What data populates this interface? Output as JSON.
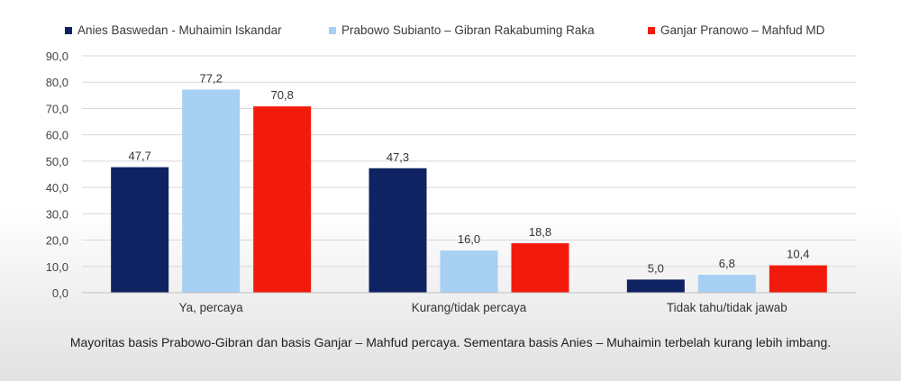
{
  "chart_data": {
    "type": "bar",
    "categories": [
      "Ya, percaya",
      "Kurang/tidak percaya",
      "Tidak tahu/tidak jawab"
    ],
    "series": [
      {
        "name": "Anies Baswedan - Muhaimin Iskandar",
        "color": "#0f2363",
        "values": [
          47.7,
          47.3,
          5.0
        ],
        "labels": [
          "47,7",
          "47,3",
          "5,0"
        ]
      },
      {
        "name": "Prabowo Subianto – Gibran Rakabuming Raka",
        "color": "#a7d0f3",
        "values": [
          77.2,
          16.0,
          6.8
        ],
        "labels": [
          "77,2",
          "16,0",
          "6,8"
        ]
      },
      {
        "name": "Ganjar Pranowo – Mahfud MD",
        "color": "#f21b0b",
        "values": [
          70.8,
          18.8,
          10.4
        ],
        "labels": [
          "70,8",
          "18,8",
          "10,4"
        ]
      }
    ],
    "yticks": [
      "0,0",
      "10,0",
      "20,0",
      "30,0",
      "40,0",
      "50,0",
      "60,0",
      "70,0",
      "80,0",
      "90,0"
    ],
    "ylim": [
      0,
      90
    ],
    "grid": true,
    "legend_position": "top"
  },
  "caption": "Mayoritas basis Prabowo-Gibran dan basis Ganjar – Mahfud percaya. Sementara basis Anies – Muhaimin terbelah kurang lebih imbang."
}
